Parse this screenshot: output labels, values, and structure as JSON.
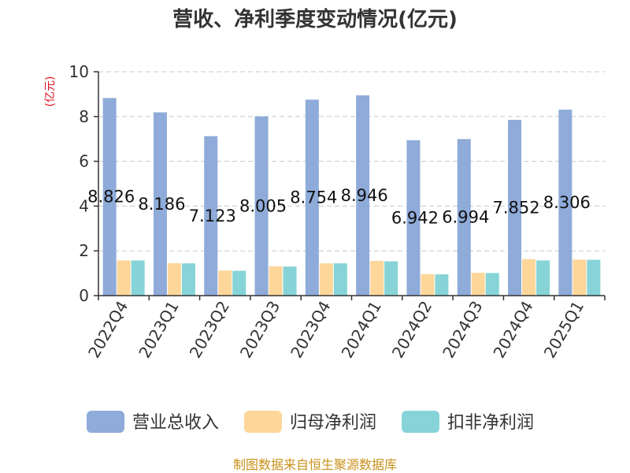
{
  "chart_data": {
    "type": "bar",
    "title": "营收、净利季度变动情况(亿元)",
    "ylabel": "(亿元)",
    "xlabel": "",
    "ylim": [
      0,
      10
    ],
    "yticks": [
      0,
      2,
      4,
      6,
      8,
      10
    ],
    "grid": true,
    "legend_position": "bottom",
    "categories": [
      "2022Q4",
      "2023Q1",
      "2023Q2",
      "2023Q3",
      "2023Q4",
      "2024Q1",
      "2024Q2",
      "2024Q3",
      "2024Q4",
      "2025Q1"
    ],
    "series": [
      {
        "name": "营业总收入",
        "color": "#8eabd9",
        "values": [
          8.826,
          8.186,
          7.123,
          8.005,
          8.754,
          8.946,
          6.942,
          6.994,
          7.852,
          8.306
        ],
        "labels": [
          "8.826",
          "8.186",
          "7.123",
          "8.005",
          "8.754",
          "8.946",
          "6.942",
          "6.994",
          "7.852",
          "8.306"
        ]
      },
      {
        "name": "归母净利润",
        "color": "#fdd69a",
        "values": [
          1.57,
          1.45,
          1.12,
          1.31,
          1.44,
          1.55,
          0.96,
          1.02,
          1.63,
          1.61
        ]
      },
      {
        "name": "扣非净利润",
        "color": "#86d4d7",
        "values": [
          1.57,
          1.44,
          1.11,
          1.3,
          1.44,
          1.53,
          0.95,
          1.01,
          1.57,
          1.6
        ]
      }
    ],
    "source": "制图数据来自恒生聚源数据库"
  }
}
